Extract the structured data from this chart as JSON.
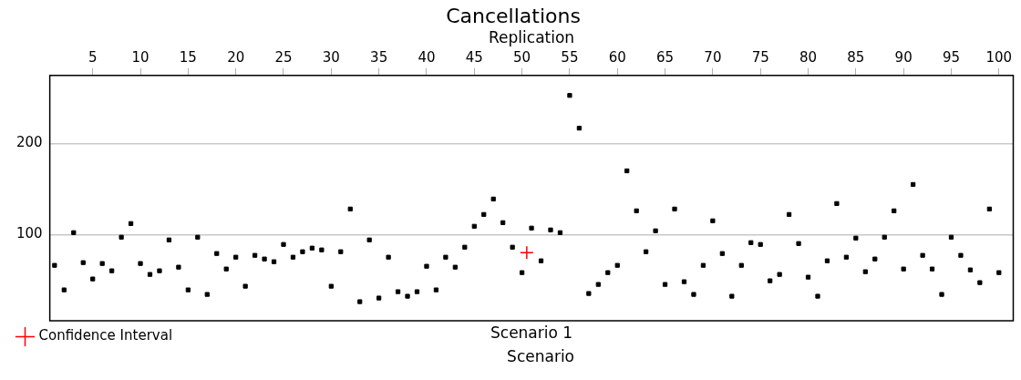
{
  "chart_data": {
    "type": "scatter",
    "title": "Cancellations",
    "xlabel": "Replication",
    "annotations": [
      "Scenario 1",
      "Scenario"
    ],
    "xlim": [
      0.5,
      101.5
    ],
    "xticks": [
      5,
      10,
      15,
      20,
      25,
      30,
      35,
      40,
      45,
      50,
      55,
      60,
      65,
      70,
      75,
      80,
      85,
      90,
      95,
      100
    ],
    "ylim": [
      5,
      275
    ],
    "yticks": [
      100,
      200
    ],
    "grid": "y",
    "legend": "bottom left",
    "series": [
      {
        "color": "#000000",
        "marker": "square",
        "x": [
          1,
          2,
          3,
          4,
          5,
          6,
          7,
          8,
          9,
          10,
          11,
          12,
          13,
          14,
          15,
          16,
          17,
          18,
          19,
          20,
          21,
          22,
          23,
          24,
          25,
          26,
          27,
          28,
          29,
          30,
          31,
          32,
          33,
          34,
          35,
          36,
          37,
          38,
          39,
          40,
          41,
          42,
          43,
          44,
          45,
          46,
          47,
          48,
          49,
          50,
          51,
          52,
          53,
          54,
          55,
          56,
          57,
          58,
          59,
          60,
          61,
          62,
          63,
          64,
          65,
          66,
          67,
          68,
          69,
          70,
          71,
          72,
          73,
          74,
          75,
          76,
          77,
          78,
          79,
          80,
          81,
          82,
          83,
          84,
          85,
          86,
          87,
          88,
          89,
          90,
          91,
          92,
          93,
          94,
          95,
          96,
          97,
          98,
          99,
          100
        ],
        "values": [
          66,
          39,
          102,
          69,
          51,
          68,
          60,
          97,
          112,
          68,
          56,
          60,
          94,
          64,
          39,
          97,
          34,
          79,
          62,
          75,
          43,
          77,
          73,
          70,
          89,
          75,
          81,
          85,
          83,
          43,
          81,
          128,
          26,
          94,
          30,
          75,
          37,
          32,
          37,
          65,
          39,
          75,
          64,
          86,
          109,
          122,
          139,
          113,
          86,
          58,
          107,
          71,
          105,
          102,
          253,
          217,
          35,
          45,
          58,
          66,
          170,
          126,
          81,
          104,
          45,
          128,
          48,
          34,
          66,
          115,
          79,
          32,
          66,
          91,
          89,
          49,
          56,
          122,
          90,
          53,
          32,
          71,
          134,
          75,
          96,
          59,
          73,
          97,
          126,
          62,
          155,
          77,
          62,
          34,
          97,
          77,
          61,
          47,
          128,
          58
        ]
      },
      {
        "name": "Confidence Interval",
        "color": "#ff0000",
        "marker": "cross",
        "x": [
          50.5
        ],
        "values": [
          80
        ]
      }
    ]
  }
}
